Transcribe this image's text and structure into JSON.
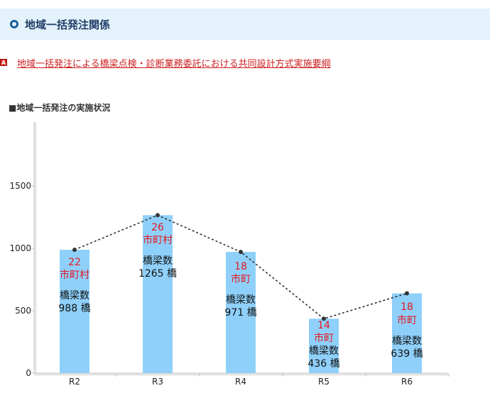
{
  "section": {
    "title": "地域一括発注関係"
  },
  "pdf_link": {
    "icon_text": "A",
    "label": "地域一括発注による橋梁点検・診断業務委託における共同設計方式実施要綱"
  },
  "subheading": "■地域一括発注の実施状況",
  "colors": {
    "bar": "#8fd0fa",
    "red_label": "#e4161e",
    "link": "#cc1f1f",
    "header_bg": "#e3f2fb"
  },
  "chart_data": {
    "type": "bar",
    "categories": [
      "R2",
      "R3",
      "R4",
      "R5",
      "R6"
    ],
    "values": [
      988,
      1265,
      971,
      436,
      639
    ],
    "line_overlay": true,
    "ylim": [
      0,
      2000
    ],
    "yticks": [
      0,
      500,
      1000,
      1500
    ],
    "ytick_labels": [
      "0",
      "500",
      "1000",
      "1500"
    ],
    "grid": false,
    "bar_labels": [
      {
        "count": "22",
        "unit": "市町村",
        "bridge_label": "橋梁数",
        "bridge_value": "988 橋"
      },
      {
        "count": "26",
        "unit": "市町村",
        "bridge_label": "橋梁数",
        "bridge_value": "1265 橋"
      },
      {
        "count": "18",
        "unit": "市町",
        "bridge_label": "橋梁数",
        "bridge_value": "971 橋"
      },
      {
        "count": "14",
        "unit": "市町",
        "bridge_label": "橋梁数",
        "bridge_value": "436 橋"
      },
      {
        "count": "18",
        "unit": "市町",
        "bridge_label": "橋梁数",
        "bridge_value": "639 橋"
      }
    ]
  }
}
